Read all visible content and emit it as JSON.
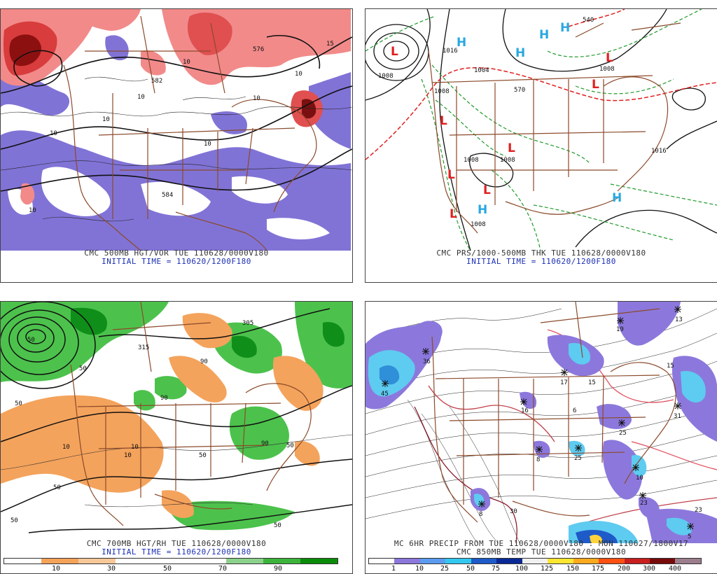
{
  "panels": [
    {
      "id": "500mb",
      "caption": "CMC 500MB HGT/VOR TUE 110628/0000V180",
      "init": "INITIAL TIME = 110620/1200F180",
      "contour_labels": [
        "582",
        "576",
        "584",
        "10",
        "10",
        "10",
        "10",
        "10",
        "10",
        "10",
        "10",
        "15"
      ]
    },
    {
      "id": "prs",
      "caption": "CMC PRS/1000-500MB THK TUE 110628/0000V180",
      "init": "INITIAL TIME = 110620/1200F180",
      "highs": [
        "H",
        "H",
        "H",
        "H",
        "H",
        "H"
      ],
      "lows": [
        "L",
        "L",
        "L",
        "L",
        "L",
        "L",
        "L",
        "L"
      ],
      "isobar_labels": [
        "1008",
        "1016",
        "1008",
        "1008",
        "1008",
        "1008",
        "1016",
        "570",
        "540",
        "1008",
        "1004"
      ]
    },
    {
      "id": "700mb",
      "caption": "CMC 700MB HGT/RH TUE 110628/0000V180",
      "init": "INITIAL TIME = 110620/1200F180",
      "colorbar": {
        "labels": [
          "10",
          "30",
          "50",
          "70",
          "90"
        ],
        "colors": [
          "#ffffff",
          "#f6a35a",
          "#f9c898",
          "#ffffff",
          "#ffffff",
          "#ffffff",
          "#8cd28c",
          "#3cb43c",
          "#0a8c0a"
        ]
      },
      "contour_labels": [
        "50",
        "50",
        "50",
        "50",
        "10",
        "10",
        "10",
        "50",
        "50",
        "50",
        "315",
        "305",
        "90",
        "90",
        "90",
        "50"
      ]
    },
    {
      "id": "precip",
      "caption": "MC 6HR PRECIP FROM TUE 110628/0000V180 : MON 110627/1800V17",
      "caption2": "CMC 850MB TEMP TUE 110628/0000V180",
      "colorbar": {
        "labels": [
          "1",
          "10",
          "25",
          "50",
          "75",
          "100",
          "125",
          "150",
          "175",
          "200",
          "300",
          "400"
        ],
        "colors": [
          "#ffffff",
          "#8c78dc",
          "#5a9bf0",
          "#32c8f0",
          "#1e5ac8",
          "#0a2896",
          "#f0f0f0",
          "#ffe632",
          "#ffaa1e",
          "#ff5014",
          "#c81e1e",
          "#780a0a",
          "#9b7d8c"
        ]
      },
      "station_labels": [
        "36",
        "45",
        "17",
        "25",
        "15",
        "23",
        "8",
        "16",
        "19",
        "25",
        "10",
        "23",
        "30",
        "8",
        "31",
        "13",
        "15",
        "6",
        "5"
      ]
    }
  ]
}
